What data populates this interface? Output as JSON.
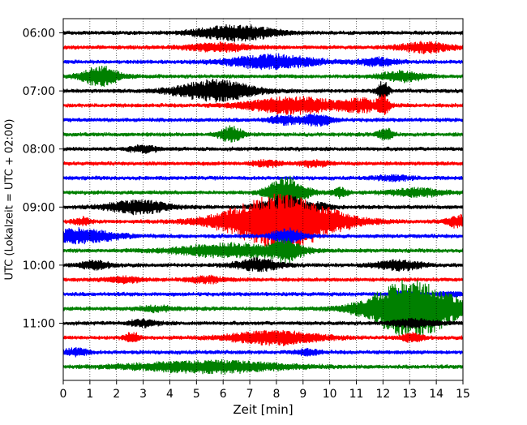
{
  "chart_data": {
    "type": "line",
    "title": "",
    "xlabel": "Zeit  [min]",
    "ylabel": "UTC (Lokalzeit = UTC + 02:00)",
    "xlim": [
      0,
      15
    ],
    "x_ticks": [
      "0",
      "1",
      "2",
      "3",
      "4",
      "5",
      "6",
      "7",
      "8",
      "9",
      "10",
      "11",
      "12",
      "13",
      "14",
      "15"
    ],
    "y_ticks": [
      "06:00",
      "07:00",
      "08:00",
      "09:00",
      "10:00",
      "11:00"
    ],
    "grid": "vertical dotted",
    "trace_interval_min": 15,
    "trace_colors": [
      "#000000",
      "#ff0000",
      "#0000ff",
      "#008000"
    ],
    "traces": [
      {
        "label": "06:00",
        "bursts": [
          [
            6.5,
            4,
            1.0
          ]
        ]
      },
      {
        "label": "06:15",
        "bursts": [
          [
            5.8,
            2,
            0.8
          ],
          [
            13.6,
            2.5,
            0.7
          ]
        ]
      },
      {
        "label": "06:30",
        "bursts": [
          [
            7.8,
            3.5,
            1.2
          ],
          [
            11.8,
            2,
            0.5
          ]
        ]
      },
      {
        "label": "06:45",
        "bursts": [
          [
            1.4,
            5,
            0.5
          ],
          [
            12.7,
            2.5,
            0.6
          ]
        ]
      },
      {
        "label": "07:00",
        "bursts": [
          [
            5.7,
            5.5,
            1.0
          ],
          [
            12.0,
            5,
            0.15
          ]
        ]
      },
      {
        "label": "07:15",
        "bursts": [
          [
            8.6,
            4.5,
            1.2
          ],
          [
            11.2,
            3,
            0.5
          ],
          [
            12.0,
            5,
            0.15
          ]
        ]
      },
      {
        "label": "07:30",
        "bursts": [
          [
            8.3,
            2,
            0.4
          ],
          [
            9.5,
            3,
            0.4
          ]
        ]
      },
      {
        "label": "07:45",
        "bursts": [
          [
            6.3,
            4,
            0.3
          ],
          [
            12.1,
            3,
            0.2
          ]
        ]
      },
      {
        "label": "08:00",
        "bursts": [
          [
            3.0,
            1.5,
            0.4
          ]
        ]
      },
      {
        "label": "08:15",
        "bursts": [
          [
            7.6,
            1.5,
            0.4
          ],
          [
            9.4,
            1.5,
            0.4
          ]
        ]
      },
      {
        "label": "08:30",
        "bursts": [
          [
            12.4,
            1.2,
            0.5
          ]
        ]
      },
      {
        "label": "08:45",
        "bursts": [
          [
            8.4,
            8,
            0.5
          ],
          [
            10.4,
            2.5,
            0.2
          ],
          [
            13.3,
            2,
            0.7
          ]
        ]
      },
      {
        "label": "09:00",
        "bursts": [
          [
            2.8,
            3.5,
            0.8
          ],
          [
            8.3,
            6,
            0.6
          ],
          [
            9.7,
            1.5,
            0.3
          ]
        ]
      },
      {
        "label": "09:15",
        "bursts": [
          [
            8.2,
            14,
            1.5
          ],
          [
            14.9,
            3,
            0.4
          ],
          [
            0.7,
            2,
            0.2
          ]
        ]
      },
      {
        "label": "09:30",
        "bursts": [
          [
            0.6,
            3.5,
            1.0
          ],
          [
            8.4,
            4,
            0.4
          ]
        ]
      },
      {
        "label": "09:45",
        "bursts": [
          [
            6.3,
            3.5,
            1.5
          ],
          [
            8.4,
            5,
            0.4
          ]
        ]
      },
      {
        "label": "10:00",
        "bursts": [
          [
            1.2,
            2,
            0.4
          ],
          [
            7.3,
            3,
            0.6
          ],
          [
            12.6,
            2.5,
            0.6
          ]
        ]
      },
      {
        "label": "10:15",
        "bursts": [
          [
            2.3,
            1.5,
            0.5
          ],
          [
            5.4,
            1.5,
            0.5
          ]
        ]
      },
      {
        "label": "10:30",
        "bursts": [
          [
            12.7,
            1.5,
            0.3
          ],
          [
            14.5,
            1.2,
            0.3
          ]
        ]
      },
      {
        "label": "10:45",
        "bursts": [
          [
            13.1,
            15,
            1.2
          ],
          [
            3.5,
            1.2,
            0.5
          ]
        ]
      },
      {
        "label": "11:00",
        "bursts": [
          [
            13.2,
            2,
            0.6
          ],
          [
            3.0,
            1.5,
            0.4
          ]
        ]
      },
      {
        "label": "11:15",
        "bursts": [
          [
            7.9,
            3.5,
            1.2
          ],
          [
            2.6,
            2.5,
            0.2
          ],
          [
            13.1,
            2,
            0.3
          ]
        ]
      },
      {
        "label": "11:30",
        "bursts": [
          [
            0.5,
            2,
            0.3
          ],
          [
            9.2,
            1.5,
            0.3
          ]
        ]
      },
      {
        "label": "11:45",
        "bursts": [
          [
            5.5,
            3,
            2.0
          ]
        ]
      }
    ]
  }
}
